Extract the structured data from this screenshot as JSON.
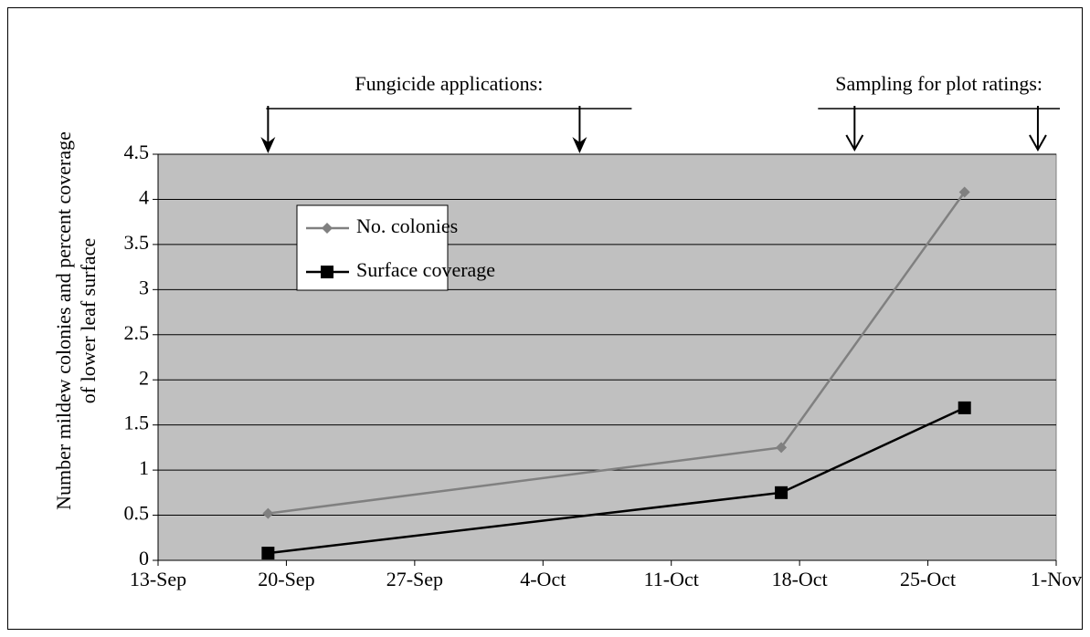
{
  "chart_data": {
    "type": "line",
    "ylabel": [
      "Number mildew colonies and percent coverage",
      "of lower leaf surface"
    ],
    "x": [
      "19-Sep",
      "17-Oct",
      "27-Oct"
    ],
    "series": [
      {
        "name": "No. colonies",
        "color": "#808080",
        "marker": "diamond",
        "values": [
          0.52,
          1.25,
          4.08
        ]
      },
      {
        "name": "Surface coverage",
        "color": "#000000",
        "marker": "square",
        "values": [
          0.08,
          0.75,
          1.69
        ]
      }
    ],
    "xlim": [
      "13-Sep",
      "1-Nov"
    ],
    "xticks": [
      "13-Sep",
      "20-Sep",
      "27-Sep",
      "4-Oct",
      "11-Oct",
      "18-Oct",
      "25-Oct",
      "1-Nov"
    ],
    "ylim": [
      0,
      4.5
    ],
    "yticks": [
      0,
      0.5,
      1,
      1.5,
      2,
      2.5,
      3,
      3.5,
      4,
      4.5
    ],
    "grid": true,
    "annotations": [
      {
        "text": "Fungicide applications:",
        "dates": [
          "19-Sep",
          "6-Oct"
        ],
        "arrow": "filled"
      },
      {
        "text": "Sampling for plot ratings:",
        "dates": [
          "21-Oct",
          "31-Oct"
        ],
        "arrow": "open"
      }
    ]
  }
}
